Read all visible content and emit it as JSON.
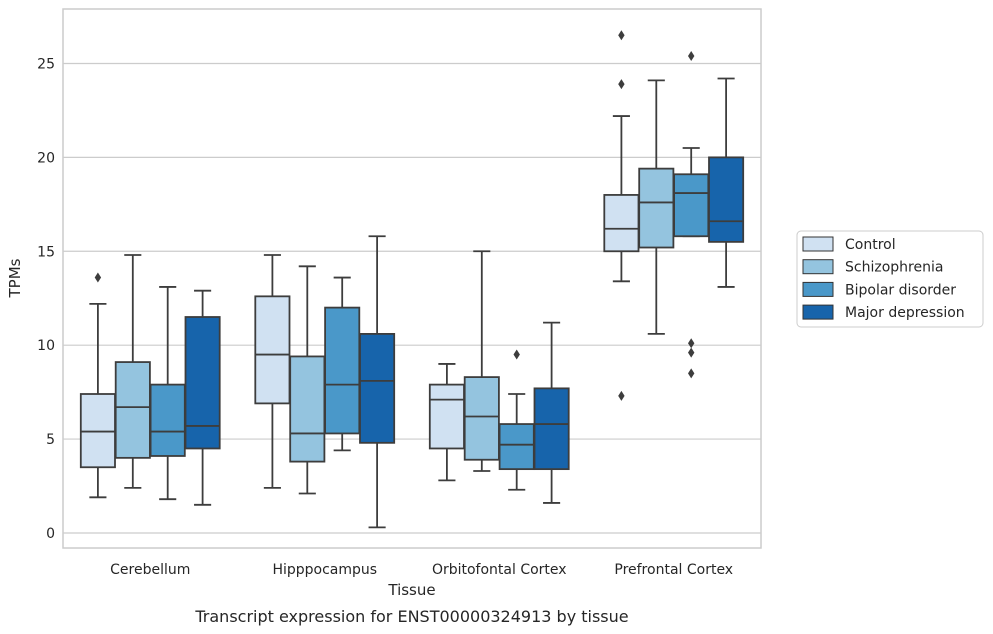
{
  "caption": "Transcript expression for ENST00000324913 by tissue",
  "chart_data": {
    "type": "boxplot",
    "xlabel": "Tissue",
    "ylabel": "TPMs",
    "ylim": [
      -0.8,
      27.9
    ],
    "yticks": [
      0,
      5,
      10,
      15,
      20,
      25
    ],
    "grid": "horizontal",
    "legend_position": "center-right outside",
    "categories": [
      "Cerebellum",
      "Hipppocampus",
      "Orbitofontal Cortex",
      "Prefrontal Cortex"
    ],
    "series": [
      {
        "name": "Control",
        "color": "#d0e1f2",
        "boxes": [
          {
            "whislo": 1.9,
            "q1": 3.5,
            "med": 5.4,
            "q3": 7.4,
            "whishi": 12.2,
            "fliers": [
              13.6
            ]
          },
          {
            "whislo": 2.4,
            "q1": 6.9,
            "med": 9.5,
            "q3": 12.6,
            "whishi": 14.8,
            "fliers": []
          },
          {
            "whislo": 2.8,
            "q1": 4.5,
            "med": 7.1,
            "q3": 7.9,
            "whishi": 9.0,
            "fliers": []
          },
          {
            "whislo": 13.4,
            "q1": 15.0,
            "med": 16.2,
            "q3": 18.0,
            "whishi": 22.2,
            "fliers": [
              26.5,
              23.9,
              7.3
            ]
          }
        ]
      },
      {
        "name": "Schizophrenia",
        "color": "#94c4df",
        "boxes": [
          {
            "whislo": 2.4,
            "q1": 4.0,
            "med": 6.7,
            "q3": 9.1,
            "whishi": 14.8,
            "fliers": []
          },
          {
            "whislo": 2.1,
            "q1": 3.8,
            "med": 5.3,
            "q3": 9.4,
            "whishi": 14.2,
            "fliers": []
          },
          {
            "whislo": 3.3,
            "q1": 3.9,
            "med": 6.2,
            "q3": 8.3,
            "whishi": 15.0,
            "fliers": []
          },
          {
            "whislo": 10.6,
            "q1": 15.2,
            "med": 17.6,
            "q3": 19.4,
            "whishi": 24.1,
            "fliers": []
          }
        ]
      },
      {
        "name": "Bipolar disorder",
        "color": "#4a98c9",
        "boxes": [
          {
            "whislo": 1.8,
            "q1": 4.1,
            "med": 5.4,
            "q3": 7.9,
            "whishi": 13.1,
            "fliers": []
          },
          {
            "whislo": 4.4,
            "q1": 5.3,
            "med": 7.9,
            "q3": 12.0,
            "whishi": 13.6,
            "fliers": []
          },
          {
            "whislo": 2.3,
            "q1": 3.4,
            "med": 4.7,
            "q3": 5.8,
            "whishi": 7.4,
            "fliers": [
              9.5
            ]
          },
          {
            "whislo": 15.8,
            "q1": 15.8,
            "med": 18.1,
            "q3": 19.1,
            "whishi": 20.5,
            "fliers": [
              25.4,
              10.1,
              9.6,
              8.5
            ]
          }
        ]
      },
      {
        "name": "Major depression",
        "color": "#1764ab",
        "boxes": [
          {
            "whislo": 1.5,
            "q1": 4.5,
            "med": 5.7,
            "q3": 11.5,
            "whishi": 12.9,
            "fliers": []
          },
          {
            "whislo": 0.3,
            "q1": 4.8,
            "med": 8.1,
            "q3": 10.6,
            "whishi": 15.8,
            "fliers": []
          },
          {
            "whislo": 1.6,
            "q1": 3.4,
            "med": 5.8,
            "q3": 7.7,
            "whishi": 11.2,
            "fliers": []
          },
          {
            "whislo": 13.1,
            "q1": 15.5,
            "med": 16.6,
            "q3": 20.0,
            "whishi": 24.2,
            "fliers": []
          }
        ]
      }
    ]
  }
}
